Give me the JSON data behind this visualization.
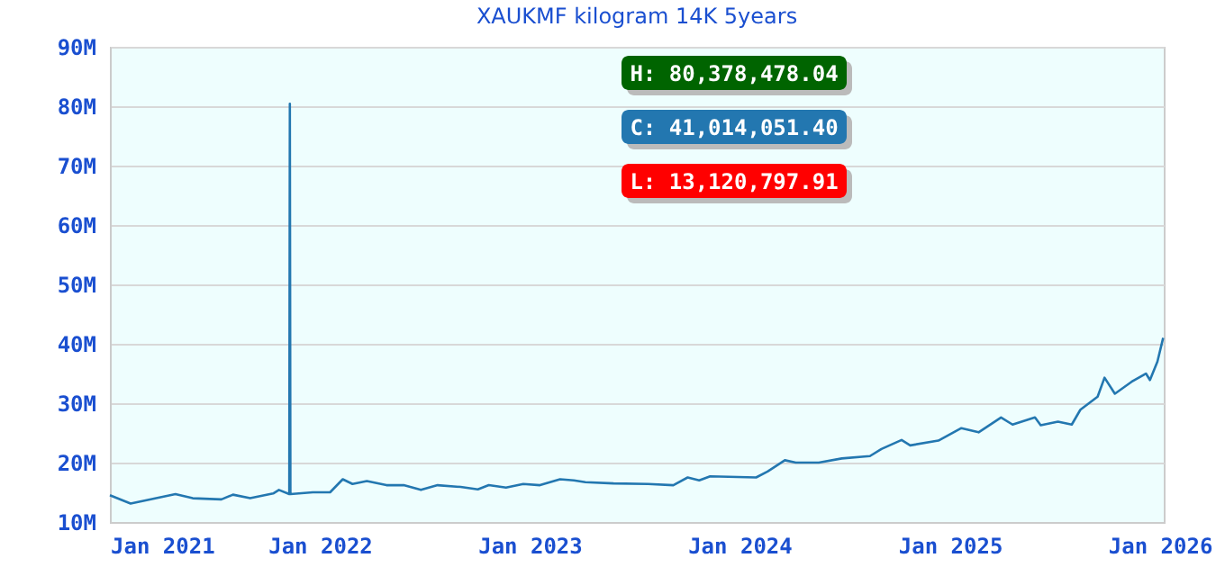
{
  "chart_data": {
    "type": "line",
    "title": "XAUKMF kilogram 14K 5years",
    "x": [
      "2021-01-01",
      "2021-02-06",
      "2021-03-17",
      "2021-04-25",
      "2021-05-25",
      "2021-07-14",
      "2021-08-03",
      "2021-09-02",
      "2021-10-12",
      "2021-10-22",
      "2021-11-09",
      "2021-11-10",
      "2021-11-11",
      "2021-12-20",
      "2022-01-19",
      "2022-02-10",
      "2022-02-27",
      "2022-03-24",
      "2022-04-27",
      "2022-05-27",
      "2022-06-26",
      "2022-07-25",
      "2022-09-03",
      "2022-10-03",
      "2022-10-22",
      "2022-11-21",
      "2022-12-21",
      "2023-01-19",
      "2023-02-23",
      "2023-03-19",
      "2023-04-08",
      "2023-05-27",
      "2023-07-26",
      "2023-09-08",
      "2023-10-03",
      "2023-10-23",
      "2023-11-11",
      "2024-01-30",
      "2024-02-19",
      "2024-03-20",
      "2024-04-08",
      "2024-05-18",
      "2024-06-27",
      "2024-08-15",
      "2024-09-04",
      "2024-10-09",
      "2024-10-24",
      "2024-12-12",
      "2025-01-21",
      "2025-02-20",
      "2025-03-31",
      "2025-04-20",
      "2025-05-29",
      "2025-06-08",
      "2025-07-08",
      "2025-08-01",
      "2025-08-16",
      "2025-09-15",
      "2025-09-27",
      "2025-10-15",
      "2025-11-13",
      "2025-12-08",
      "2025-12-15",
      "2025-12-28",
      "2026-01-07"
    ],
    "series": [
      {
        "color": "#2377b0",
        "values": [
          14.5,
          13.1,
          13.9,
          14.7,
          14.0,
          13.8,
          14.6,
          14.0,
          14.8,
          15.4,
          14.7,
          80.4,
          14.7,
          15.0,
          15.0,
          17.2,
          16.4,
          16.9,
          16.2,
          16.2,
          15.4,
          16.2,
          15.9,
          15.5,
          16.2,
          15.8,
          16.4,
          16.2,
          17.2,
          17.0,
          16.7,
          16.5,
          16.4,
          16.2,
          17.5,
          17.0,
          17.7,
          17.5,
          18.5,
          20.4,
          20.0,
          20.0,
          20.7,
          21.1,
          22.3,
          23.8,
          22.9,
          23.7,
          25.8,
          25.1,
          27.6,
          26.4,
          27.6,
          26.3,
          26.9,
          26.4,
          28.9,
          31.1,
          34.3,
          31.6,
          33.6,
          35.0,
          33.9,
          37.0,
          41.0
        ]
      }
    ],
    "xlim": [
      "2021-01-01",
      "2026-01-08"
    ],
    "xticks": [
      {
        "value": "2021-01-01",
        "label": "Jan 2021"
      },
      {
        "value": "2022-01-01",
        "label": "Jan 2022"
      },
      {
        "value": "2023-01-01",
        "label": "Jan 2023"
      },
      {
        "value": "2024-01-01",
        "label": "Jan 2024"
      },
      {
        "value": "2025-01-01",
        "label": "Jan 2025"
      },
      {
        "value": "2026-01-01",
        "label": "Jan 2026"
      }
    ],
    "ylim": [
      10,
      90
    ],
    "yticks": [
      {
        "value": 10,
        "label": "10M"
      },
      {
        "value": 20,
        "label": "20M"
      },
      {
        "value": 30,
        "label": "30M"
      },
      {
        "value": 40,
        "label": "40M"
      },
      {
        "value": 50,
        "label": "50M"
      },
      {
        "value": 60,
        "label": "60M"
      },
      {
        "value": 70,
        "label": "70M"
      },
      {
        "value": 80,
        "label": "80M"
      },
      {
        "value": 90,
        "label": "90M"
      }
    ],
    "grid": "y",
    "annotations": [
      "H: 80,378,478.04",
      "C: 41,014,051.40",
      "L: 13,120,797.91"
    ]
  }
}
